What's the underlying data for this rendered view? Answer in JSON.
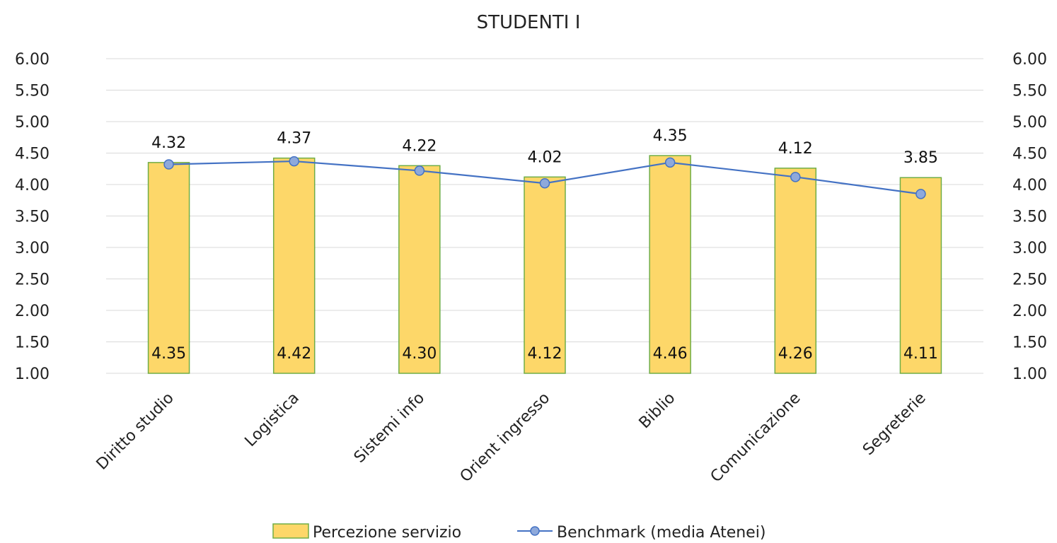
{
  "chart_data": {
    "type": "bar",
    "title": "STUDENTI I",
    "categories": [
      "Diritto studio",
      "Logistica",
      "Sistemi info",
      "Orient ingresso",
      "Biblio",
      "Comunicazione",
      "Segreterie"
    ],
    "series": [
      {
        "name": "Percezione servizio",
        "type": "bar",
        "values": [
          4.35,
          4.42,
          4.3,
          4.12,
          4.46,
          4.26,
          4.11
        ],
        "value_labels": [
          "4.35",
          "4.42",
          "4.30",
          "4.12",
          "4.46",
          "4.26",
          "4.11"
        ],
        "color": "#FDD769",
        "border_color": "#70AD47"
      },
      {
        "name": "Benchmark (media Atenei)",
        "type": "line",
        "values": [
          4.32,
          4.37,
          4.22,
          4.02,
          4.35,
          4.12,
          3.85
        ],
        "value_labels": [
          "4.32",
          "4.37",
          "4.22",
          "4.02",
          "4.35",
          "4.12",
          "3.85"
        ],
        "color": "#4472C4",
        "marker_color": "#8EA9DB"
      }
    ],
    "ylim": [
      1.0,
      6.0
    ],
    "y_ticks": [
      "1.00",
      "1.50",
      "2.00",
      "2.50",
      "3.00",
      "3.50",
      "4.00",
      "4.50",
      "5.00",
      "5.50",
      "6.00"
    ],
    "secondary_y_ticks": [
      "1.00",
      "1.50",
      "2.00",
      "2.50",
      "3.00",
      "3.50",
      "4.00",
      "4.50",
      "5.00",
      "5.50",
      "6.00"
    ],
    "grid": true,
    "legend_position": "bottom"
  }
}
